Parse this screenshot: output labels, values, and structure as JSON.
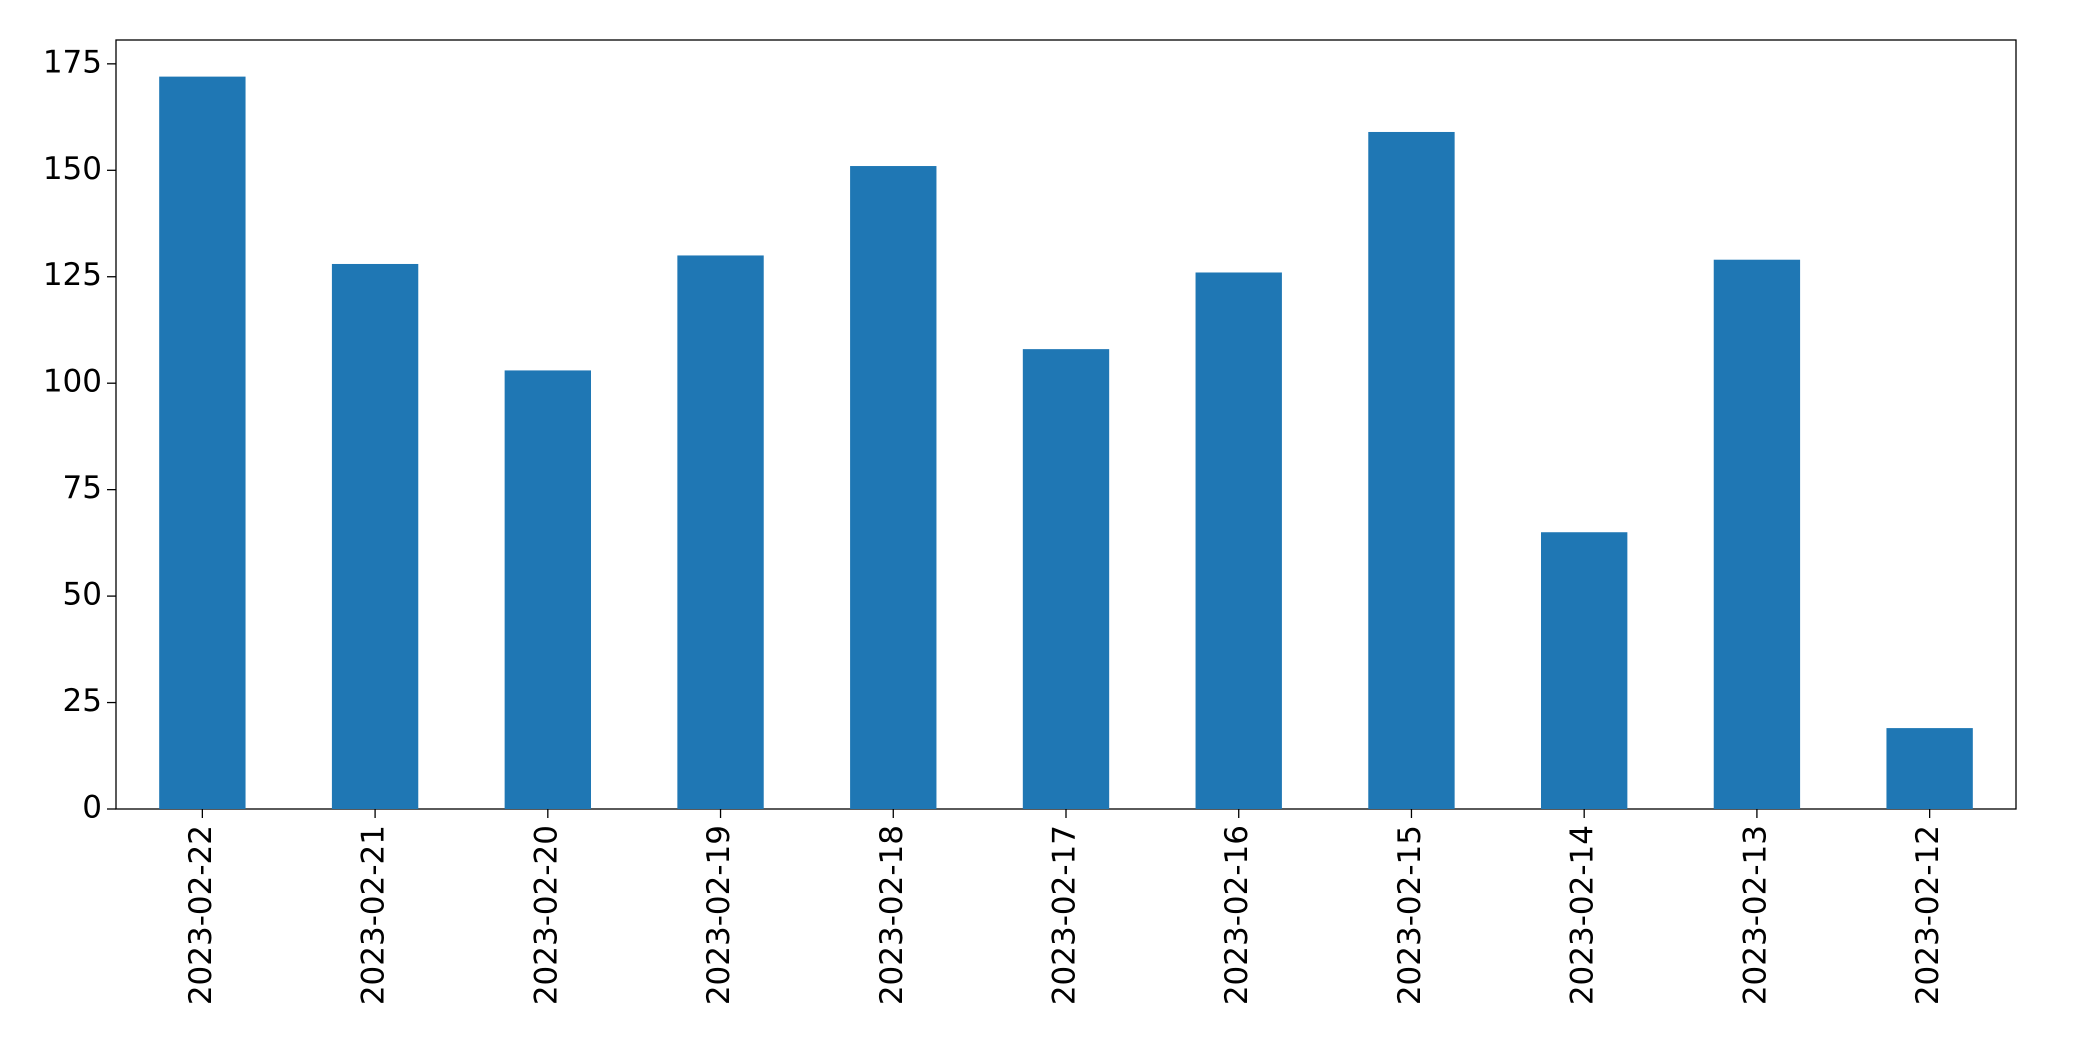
{
  "chart_data": {
    "type": "bar",
    "categories": [
      "2023-02-22",
      "2023-02-21",
      "2023-02-20",
      "2023-02-19",
      "2023-02-18",
      "2023-02-17",
      "2023-02-16",
      "2023-02-15",
      "2023-02-14",
      "2023-02-13",
      "2023-02-12"
    ],
    "values": [
      172,
      128,
      103,
      130,
      151,
      108,
      126,
      159,
      65,
      129,
      19
    ],
    "color": "#1f77b4",
    "ylim": [
      0,
      180.6
    ],
    "yticks": [
      0,
      25,
      50,
      75,
      100,
      125,
      150,
      175
    ],
    "grid": false
  }
}
